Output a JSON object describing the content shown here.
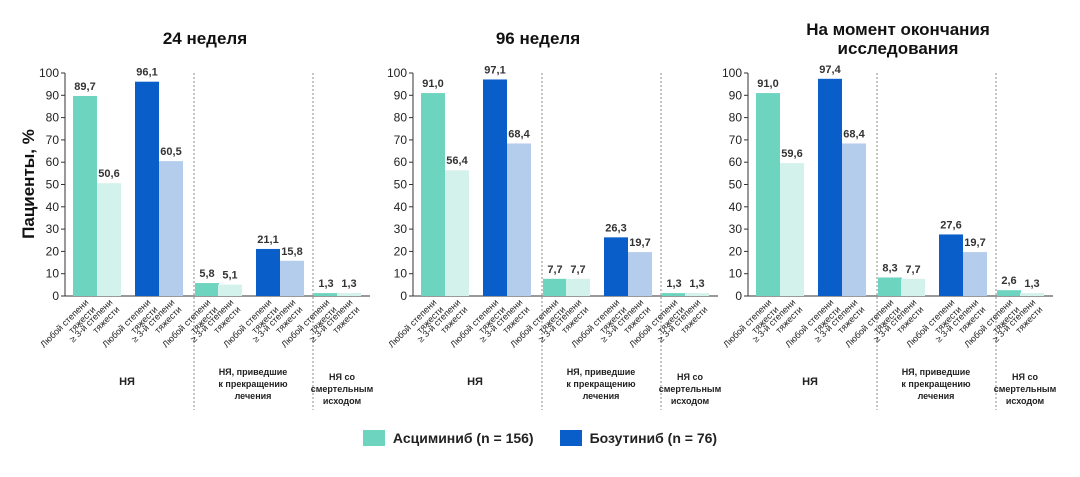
{
  "chart_data": {
    "type": "bar",
    "ylabel": "Пациенты, %",
    "ylim": [
      0,
      100
    ],
    "yticks": [
      0,
      10,
      20,
      30,
      40,
      50,
      60,
      70,
      80,
      90,
      100
    ],
    "grid": false,
    "legend_position": "bottom",
    "series": [
      {
        "name": "Асциминиб (n = 156)",
        "color": "#6dd4c0",
        "light_color": "#d4f2ec"
      },
      {
        "name": "Бозутиниб (n = 76)",
        "color": "#0a5ec9",
        "light_color": "#b5cdec"
      }
    ],
    "category_labels": [
      "Любой степени тяжести",
      "≥ 3-й степени тяжести"
    ],
    "groups": [
      "НЯ",
      "НЯ, приведшие к прекращению лечения",
      "НЯ со смертельным исходом"
    ],
    "panels": [
      {
        "title": "24 неделя",
        "values": {
          "Асциминиб (n = 156)": [
            [
              89.7,
              50.6
            ],
            [
              5.8,
              5.1
            ],
            [
              1.3,
              1.3
            ]
          ],
          "Бозутиниб (n = 76)": [
            [
              96.1,
              60.5
            ],
            [
              21.1,
              15.8
            ],
            [
              null,
              null
            ]
          ]
        },
        "labels": {
          "Асциминиб (n = 156)": [
            [
              "89,7",
              "50,6"
            ],
            [
              "5,8",
              "5,1"
            ],
            [
              "1,3",
              "1,3"
            ]
          ],
          "Бозутиниб (n = 76)": [
            [
              "96,1",
              "60,5"
            ],
            [
              "21,1",
              "15,8"
            ],
            [
              "",
              ""
            ]
          ]
        }
      },
      {
        "title": "96 неделя",
        "values": {
          "Асциминиб (n = 156)": [
            [
              91.0,
              56.4
            ],
            [
              7.7,
              7.7
            ],
            [
              1.3,
              1.3
            ]
          ],
          "Бозутиниб (n = 76)": [
            [
              97.1,
              68.4
            ],
            [
              26.3,
              19.7
            ],
            [
              null,
              null
            ]
          ]
        },
        "labels": {
          "Асциминиб (n = 156)": [
            [
              "91,0",
              "56,4"
            ],
            [
              "7,7",
              "7,7"
            ],
            [
              "1,3",
              "1,3"
            ]
          ],
          "Бозутиниб (n = 76)": [
            [
              "97,1",
              "68,4"
            ],
            [
              "26,3",
              "19,7"
            ],
            [
              "",
              ""
            ]
          ]
        }
      },
      {
        "title": "На момент окончания исследования",
        "values": {
          "Асциминиб (n = 156)": [
            [
              91.0,
              59.6
            ],
            [
              8.3,
              7.7
            ],
            [
              2.6,
              1.3
            ]
          ],
          "Бозутиниб (n = 76)": [
            [
              97.4,
              68.4
            ],
            [
              27.6,
              19.7
            ],
            [
              null,
              null
            ]
          ]
        },
        "labels": {
          "Асциминиб (n = 156)": [
            [
              "91,0",
              "59,6"
            ],
            [
              "8,3",
              "7,7"
            ],
            [
              "2,6",
              "1,3"
            ]
          ],
          "Бозутиниб (n = 76)": [
            [
              "97,4",
              "68,4"
            ],
            [
              "27,6",
              "19,7"
            ],
            [
              "",
              ""
            ]
          ]
        }
      }
    ]
  }
}
